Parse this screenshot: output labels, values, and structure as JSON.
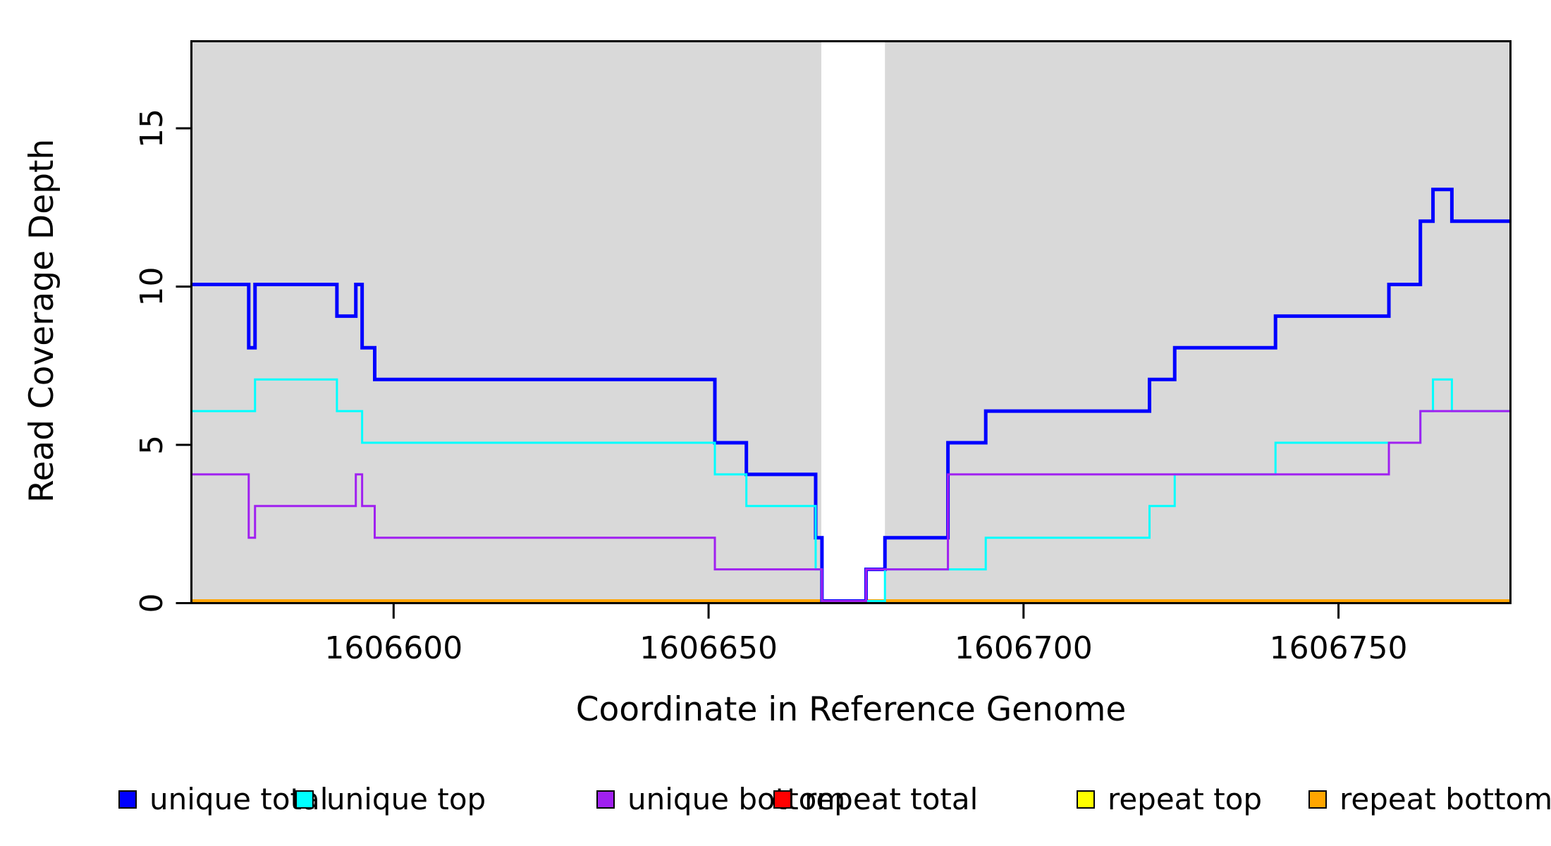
{
  "figure": {
    "xlabel": "Coordinate in Reference Genome",
    "ylabel": "Read Coverage Depth"
  },
  "chart_data": {
    "type": "line",
    "step": true,
    "title": "",
    "xlabel": "Coordinate in Reference Genome",
    "ylabel": "Read Coverage Depth",
    "xlim": [
      1606567.9,
      1606777.3
    ],
    "ylim": [
      0,
      17.75
    ],
    "x_ticks": [
      1606600,
      1606650,
      1606700,
      1606750
    ],
    "y_ticks": [
      0,
      5,
      10,
      15
    ],
    "grid": false,
    "legend_position": "bottom",
    "background_regions": [
      {
        "x0": 1606567.9,
        "x1": 1606667.9,
        "color": "#D9D9D9"
      },
      {
        "x0": 1606678.0,
        "x1": 1606777.3,
        "color": "#D9D9D9"
      }
    ],
    "gap_region": {
      "x0": 1606667.9,
      "x1": 1606678.0,
      "color": "#FFFFFF"
    },
    "series": [
      {
        "name": "repeat total",
        "color": "#FF0000",
        "width": 3,
        "steps": [
          [
            1606567.9,
            1606777.3,
            0
          ]
        ]
      },
      {
        "name": "repeat top",
        "color": "#FFFF00",
        "width": 3,
        "steps": [
          [
            1606567.9,
            1606777.3,
            0
          ]
        ]
      },
      {
        "name": "repeat bottom",
        "color": "#FFA500",
        "width": 5,
        "steps": [
          [
            1606567.9,
            1606777.3,
            0
          ]
        ]
      },
      {
        "name": "unique total",
        "color": "#0000FF",
        "width": 5,
        "steps": [
          [
            1606567.9,
            1606577,
            10
          ],
          [
            1606577,
            1606578,
            8
          ],
          [
            1606578,
            1606591,
            10
          ],
          [
            1606591,
            1606594,
            9
          ],
          [
            1606594,
            1606595,
            10
          ],
          [
            1606595,
            1606597,
            8
          ],
          [
            1606597,
            1606651,
            7
          ],
          [
            1606651,
            1606656,
            5
          ],
          [
            1606656,
            1606667,
            4
          ],
          [
            1606667,
            1606668,
            2
          ],
          [
            1606668,
            1606675,
            0
          ],
          [
            1606675,
            1606678,
            1
          ],
          [
            1606678,
            1606688,
            2
          ],
          [
            1606688,
            1606694,
            5
          ],
          [
            1606694,
            1606720,
            6
          ],
          [
            1606720,
            1606724,
            7
          ],
          [
            1606724,
            1606740,
            8
          ],
          [
            1606740,
            1606758,
            9
          ],
          [
            1606758,
            1606763,
            10
          ],
          [
            1606763,
            1606765,
            12
          ],
          [
            1606765,
            1606768,
            13
          ],
          [
            1606768,
            1606777.3,
            12
          ]
        ]
      },
      {
        "name": "unique top",
        "color": "#00FFFF",
        "width": 3,
        "steps": [
          [
            1606567.9,
            1606578,
            6
          ],
          [
            1606578,
            1606591,
            7
          ],
          [
            1606591,
            1606595,
            6
          ],
          [
            1606595,
            1606651,
            5
          ],
          [
            1606651,
            1606656,
            4
          ],
          [
            1606656,
            1606667,
            3
          ],
          [
            1606667,
            1606668,
            1
          ],
          [
            1606668,
            1606678,
            0
          ],
          [
            1606678,
            1606694,
            1
          ],
          [
            1606694,
            1606720,
            2
          ],
          [
            1606720,
            1606724,
            3
          ],
          [
            1606724,
            1606740,
            4
          ],
          [
            1606740,
            1606763,
            5
          ],
          [
            1606763,
            1606765,
            6
          ],
          [
            1606765,
            1606768,
            7
          ],
          [
            1606768,
            1606777.3,
            6
          ]
        ]
      },
      {
        "name": "unique bottom",
        "color": "#A020F0",
        "width": 3,
        "steps": [
          [
            1606567.9,
            1606577,
            4
          ],
          [
            1606577,
            1606578,
            2
          ],
          [
            1606578,
            1606594,
            3
          ],
          [
            1606594,
            1606595,
            4
          ],
          [
            1606595,
            1606597,
            3
          ],
          [
            1606597,
            1606651,
            2
          ],
          [
            1606651,
            1606668,
            1
          ],
          [
            1606668,
            1606675,
            0
          ],
          [
            1606675,
            1606688,
            1
          ],
          [
            1606688,
            1606758,
            4
          ],
          [
            1606758,
            1606763,
            5
          ],
          [
            1606763,
            1606777.3,
            6
          ]
        ]
      }
    ],
    "legend": [
      {
        "label": "unique total",
        "color": "#0000FF"
      },
      {
        "label": "unique top",
        "color": "#00FFFF"
      },
      {
        "label": "unique bottom",
        "color": "#A020F0"
      },
      {
        "label": "repeat total",
        "color": "#FF0000"
      },
      {
        "label": "repeat top",
        "color": "#FFFF00"
      },
      {
        "label": "repeat bottom",
        "color": "#FFA500"
      }
    ]
  }
}
